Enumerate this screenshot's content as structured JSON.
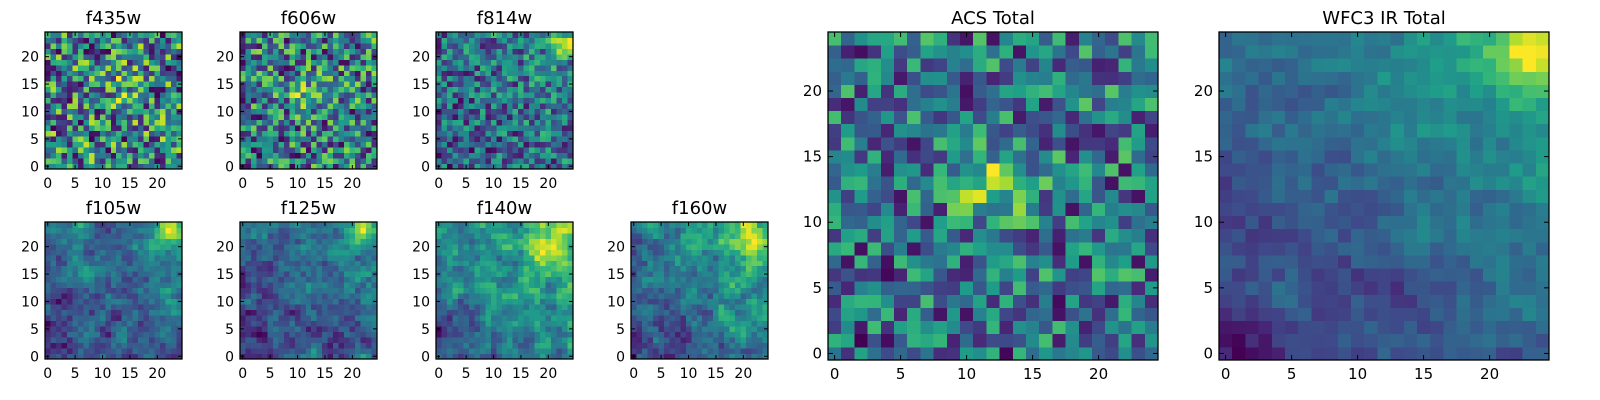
{
  "chart_data": [
    {
      "type": "heatmap",
      "title": "f435w",
      "grid_size": 25,
      "xticks": [
        0,
        5,
        10,
        15,
        20
      ],
      "yticks": [
        0,
        5,
        10,
        15,
        20
      ],
      "colormap": "viridis",
      "seed": 11,
      "smoothness": 0,
      "trend": 0.0,
      "hot_center": [
        14,
        15
      ],
      "hot_strength": 0.25
    },
    {
      "type": "heatmap",
      "title": "f606w",
      "grid_size": 25,
      "xticks": [
        0,
        5,
        10,
        15,
        20
      ],
      "yticks": [
        0,
        5,
        10,
        15,
        20
      ],
      "colormap": "viridis",
      "seed": 23,
      "smoothness": 0,
      "trend": 0.05,
      "hot_center": [
        12,
        13
      ],
      "hot_strength": 0.35
    },
    {
      "type": "heatmap",
      "title": "f814w",
      "grid_size": 25,
      "xticks": [
        0,
        5,
        10,
        15,
        20
      ],
      "yticks": [
        0,
        5,
        10,
        15,
        20
      ],
      "colormap": "viridis",
      "seed": 37,
      "smoothness": 0,
      "trend": 0.25,
      "hot_center": [
        23,
        23
      ],
      "hot_strength": 0.45
    },
    {
      "type": "heatmap",
      "title": "f105w",
      "grid_size": 25,
      "xticks": [
        0,
        5,
        10,
        15,
        20
      ],
      "yticks": [
        0,
        5,
        10,
        15,
        20
      ],
      "colormap": "viridis",
      "seed": 41,
      "smoothness": 1,
      "trend": 0.3,
      "hot_center": [
        22,
        23
      ],
      "hot_strength": 0.5
    },
    {
      "type": "heatmap",
      "title": "f125w",
      "grid_size": 25,
      "xticks": [
        0,
        5,
        10,
        15,
        20
      ],
      "yticks": [
        0,
        5,
        10,
        15,
        20
      ],
      "colormap": "viridis",
      "seed": 53,
      "smoothness": 1,
      "trend": 0.3,
      "hot_center": [
        23,
        23
      ],
      "hot_strength": 0.5
    },
    {
      "type": "heatmap",
      "title": "f140w",
      "grid_size": 25,
      "xticks": [
        0,
        5,
        10,
        15,
        20
      ],
      "yticks": [
        0,
        5,
        10,
        15,
        20
      ],
      "colormap": "viridis",
      "seed": 67,
      "smoothness": 1,
      "trend": 0.45,
      "hot_center": [
        20,
        20
      ],
      "hot_strength": 0.4
    },
    {
      "type": "heatmap",
      "title": "f160w",
      "grid_size": 25,
      "xticks": [
        0,
        5,
        10,
        15,
        20
      ],
      "yticks": [
        0,
        5,
        10,
        15,
        20
      ],
      "colormap": "viridis",
      "seed": 79,
      "smoothness": 1,
      "trend": 0.45,
      "hot_center": [
        21,
        22
      ],
      "hot_strength": 0.45
    },
    {
      "type": "heatmap",
      "title": "ACS Total",
      "grid_size": 25,
      "xticks": [
        0,
        5,
        10,
        15,
        20
      ],
      "yticks": [
        0,
        5,
        10,
        15,
        20
      ],
      "colormap": "viridis",
      "seed": 97,
      "smoothness": 0,
      "trend": 0.1,
      "hot_center": [
        12,
        13
      ],
      "hot_strength": 0.55
    },
    {
      "type": "heatmap",
      "title": "WFC3 IR Total",
      "grid_size": 25,
      "xticks": [
        0,
        5,
        10,
        15,
        20
      ],
      "yticks": [
        0,
        5,
        10,
        15,
        20
      ],
      "colormap": "viridis",
      "seed": 131,
      "smoothness": 2,
      "trend": 0.6,
      "hot_center": [
        23,
        23
      ],
      "hot_strength": 0.6
    }
  ]
}
